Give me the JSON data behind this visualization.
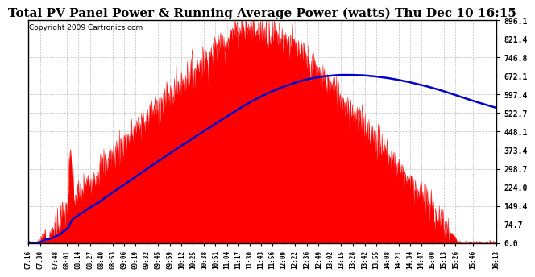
{
  "title": "Total PV Panel Power & Running Average Power (watts) Thu Dec 10 16:15",
  "copyright": "Copyright 2009 Cartronics.com",
  "yticks": [
    0.0,
    74.7,
    149.4,
    224.0,
    298.7,
    373.4,
    448.1,
    522.7,
    597.4,
    672.1,
    746.8,
    821.4,
    896.1
  ],
  "ymax": 896.1,
  "ymin": 0.0,
  "xtick_labels": [
    "07:16",
    "07:30",
    "07:48",
    "08:01",
    "08:14",
    "08:27",
    "08:40",
    "08:53",
    "09:06",
    "09:19",
    "09:32",
    "09:45",
    "09:59",
    "10:12",
    "10:25",
    "10:38",
    "10:51",
    "11:04",
    "11:17",
    "11:30",
    "11:43",
    "11:56",
    "12:09",
    "12:22",
    "12:36",
    "12:49",
    "13:02",
    "13:15",
    "13:28",
    "13:42",
    "13:55",
    "14:08",
    "14:21",
    "14:34",
    "14:47",
    "15:00",
    "15:13",
    "15:26",
    "15:46",
    "16:13"
  ],
  "background_color": "#ffffff",
  "plot_bg_color": "#ffffff",
  "grid_color": "#c0c0c0",
  "fill_color": "#ff0000",
  "line_color": "#0000cc",
  "title_fontsize": 11,
  "copyright_fontsize": 6.5
}
